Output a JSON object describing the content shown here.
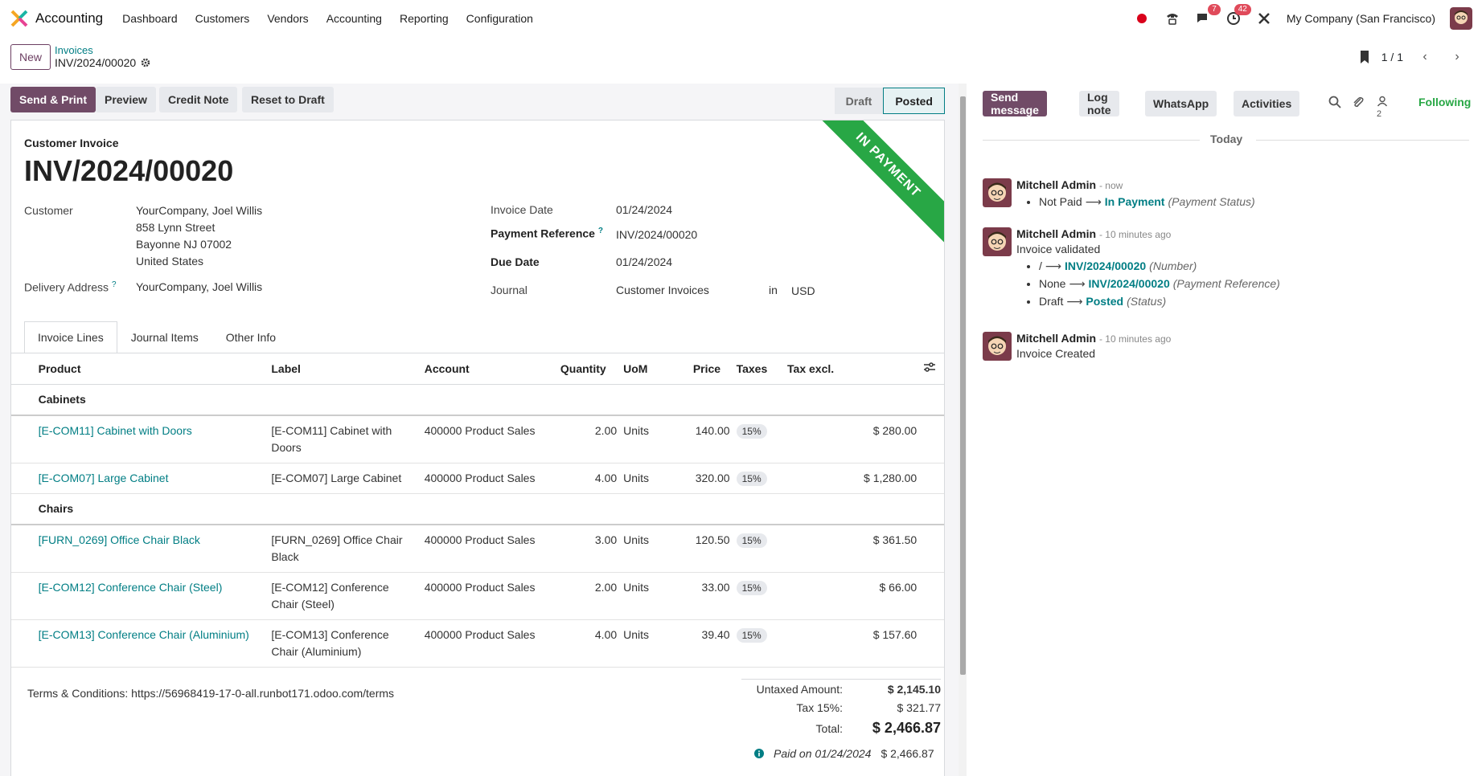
{
  "navbar": {
    "app_name": "Accounting",
    "menu": [
      "Dashboard",
      "Customers",
      "Vendors",
      "Accounting",
      "Reporting",
      "Configuration"
    ],
    "messages_count": "7",
    "activities_count": "42",
    "company": "My Company (San Francisco)"
  },
  "control": {
    "new_label": "New",
    "breadcrumb_parent": "Invoices",
    "breadcrumb_current": "INV/2024/00020",
    "pager": "1 / 1"
  },
  "statusbar": {
    "send_print": "Send & Print",
    "preview": "Preview",
    "credit_note": "Credit Note",
    "reset_draft": "Reset to Draft",
    "state_draft": "Draft",
    "state_posted": "Posted"
  },
  "form": {
    "ribbon": "IN PAYMENT",
    "doc_type": "Customer Invoice",
    "doc_name": "INV/2024/00020",
    "customer_label": "Customer",
    "customer_name": "YourCompany, Joel Willis",
    "address_line1": "858 Lynn Street",
    "address_line2": "Bayonne NJ 07002",
    "address_line3": "United States",
    "delivery_label": "Delivery Address",
    "delivery_value": "YourCompany, Joel Willis",
    "invoice_date_label": "Invoice Date",
    "invoice_date": "01/24/2024",
    "payment_ref_label": "Payment Reference",
    "payment_ref": "INV/2024/00020",
    "due_date_label": "Due Date",
    "due_date": "01/24/2024",
    "journal_label": "Journal",
    "journal": "Customer Invoices",
    "in_label": "in",
    "currency": "USD",
    "help_mark": "?"
  },
  "tabs": [
    "Invoice Lines",
    "Journal Items",
    "Other Info"
  ],
  "table": {
    "headers": {
      "product": "Product",
      "label": "Label",
      "account": "Account",
      "quantity": "Quantity",
      "uom": "UoM",
      "price": "Price",
      "taxes": "Taxes",
      "tax_excl": "Tax excl."
    },
    "rows": [
      {
        "section": "Cabinets"
      },
      {
        "product": "[E-COM11] Cabinet with Doors",
        "label1": "[E-COM11] Cabinet with",
        "label2": "Doors",
        "account": "400000 Product Sales",
        "qty": "2.00",
        "uom": "Units",
        "price": "140.00",
        "tax": "15%",
        "subtotal": "$ 280.00"
      },
      {
        "product": "[E-COM07] Large Cabinet",
        "label1": "[E-COM07] Large Cabinet",
        "label2": "",
        "account": "400000 Product Sales",
        "qty": "4.00",
        "uom": "Units",
        "price": "320.00",
        "tax": "15%",
        "subtotal": "$ 1,280.00"
      },
      {
        "section": "Chairs"
      },
      {
        "product": "[FURN_0269] Office Chair Black",
        "label1": "[FURN_0269] Office Chair",
        "label2": "Black",
        "account": "400000 Product Sales",
        "qty": "3.00",
        "uom": "Units",
        "price": "120.50",
        "tax": "15%",
        "subtotal": "$ 361.50"
      },
      {
        "product": "[E-COM12] Conference Chair (Steel)",
        "label1": "[E-COM12] Conference",
        "label2": "Chair (Steel)",
        "account": "400000 Product Sales",
        "qty": "2.00",
        "uom": "Units",
        "price": "33.00",
        "tax": "15%",
        "subtotal": "$ 66.00"
      },
      {
        "product": "[E-COM13] Conference Chair (Aluminium)",
        "label1": "[E-COM13] Conference",
        "label2": "Chair (Aluminium)",
        "account": "400000 Product Sales",
        "qty": "4.00",
        "uom": "Units",
        "price": "39.40",
        "tax": "15%",
        "subtotal": "$ 157.60"
      }
    ]
  },
  "footer": {
    "terms": "Terms & Conditions: https://56968419-17-0-all.runbot171.odoo.com/terms",
    "untaxed_label": "Untaxed Amount:",
    "untaxed": "$ 2,145.10",
    "tax_label": "Tax 15%:",
    "tax": "$ 321.77",
    "total_label": "Total:",
    "total": "$ 2,466.87",
    "paid_label": "Paid on 01/24/2024",
    "paid_amount": "$ 2,466.87"
  },
  "chatter": {
    "send_message": "Send message",
    "log_note": "Log note",
    "whatsapp": "WhatsApp",
    "activities": "Activities",
    "followers_count": "2",
    "following": "Following",
    "today": "Today",
    "messages": [
      {
        "author": "Mitchell Admin",
        "when": "- now",
        "text": "",
        "tracking": [
          {
            "old": "Not Paid",
            "new": "In Payment",
            "field": "(Payment Status)"
          }
        ]
      },
      {
        "author": "Mitchell Admin",
        "when": "- 10 minutes ago",
        "text": "Invoice validated",
        "tracking": [
          {
            "old": "/",
            "new": "INV/2024/00020",
            "field": "(Number)"
          },
          {
            "old": "None",
            "new": "INV/2024/00020",
            "field": "(Payment Reference)"
          },
          {
            "old": "Draft",
            "new": "Posted",
            "field": "(Status)"
          }
        ]
      },
      {
        "author": "Mitchell Admin",
        "when": "- 10 minutes ago",
        "text": "Invoice Created",
        "tracking": []
      }
    ]
  },
  "colors": {
    "brand": "#714b67",
    "link": "#017e84",
    "ribbon": "#28a745"
  },
  "icons": [
    "app-logo-icon",
    "record-icon",
    "phone-icon",
    "chat-icon",
    "clock-icon",
    "tools-icon",
    "gear-icon",
    "bookmark-icon",
    "chevron-left-icon",
    "chevron-right-icon",
    "search-icon",
    "paperclip-icon",
    "followers-icon",
    "info-icon",
    "settings-sliders-icon"
  ]
}
